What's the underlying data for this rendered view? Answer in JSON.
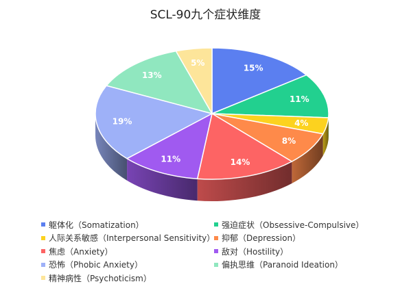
{
  "chart_data": {
    "type": "pie",
    "title": "SCL-90九个症状维度",
    "legend_position": "bottom",
    "slices": [
      {
        "name": "躯体化（Somatization）",
        "value": 15,
        "label": "15%",
        "color": "#5b7ff0"
      },
      {
        "name": "强迫症状（Obsessive-Compulsive）",
        "value": 11,
        "label": "11%",
        "color": "#22d08f"
      },
      {
        "name": "人际关系敏感（Interpersonal Sensitivity）",
        "value": 4,
        "label": "4%",
        "color": "#fcd21f"
      },
      {
        "name": "抑郁（Depression）",
        "value": 8,
        "label": "8%",
        "color": "#fe8a4a"
      },
      {
        "name": "焦虑（Anxiety）",
        "value": 14,
        "label": "14%",
        "color": "#fd6464"
      },
      {
        "name": "敌对（Hostility）",
        "value": 11,
        "label": "11%",
        "color": "#a05af0"
      },
      {
        "name": "恐怖（Phobic Anxiety）",
        "value": 19,
        "label": "19%",
        "color": "#9eb1f8"
      },
      {
        "name": "偏执思维（Paranoid Ideation）",
        "value": 13,
        "label": "13%",
        "color": "#90e7bf"
      },
      {
        "name": "精神病性（Psychoticism）",
        "value": 5,
        "label": "5%",
        "color": "#fde59a"
      }
    ]
  }
}
